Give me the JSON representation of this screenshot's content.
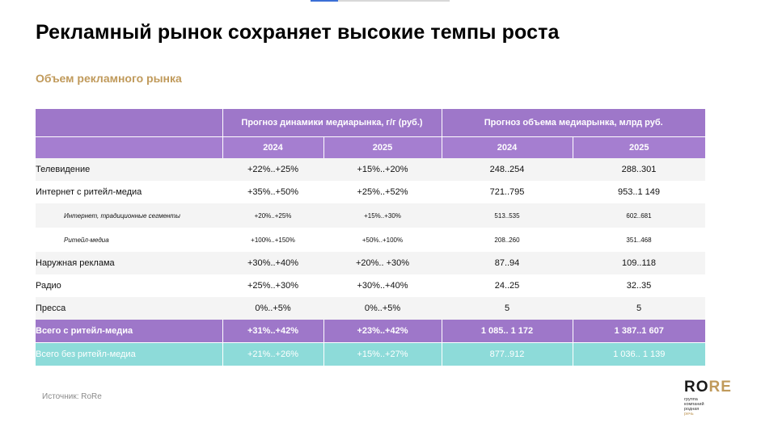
{
  "title": "Рекламный рынок сохраняет высокие темпы роста",
  "subtitle": "Объем рекламного рынка",
  "table": {
    "group_headers": [
      "Прогноз динамики медиарынка, г/г (руб.)",
      "Прогноз объема медиарынка, млрд руб."
    ],
    "year_headers": [
      "2024",
      "2025",
      "2024",
      "2025"
    ],
    "rows": [
      {
        "label": "Телевидение",
        "g2024": "+22%..+25%",
        "g2025": "+15%..+20%",
        "v2024": "248..254",
        "v2025": "288..301"
      },
      {
        "label": "Интернет с ритейл-медиа",
        "g2024": "+35%..+50%",
        "g2025": "+25%..+52%",
        "v2024": "721..795",
        "v2025": "953..1 149"
      },
      {
        "label": "Интернет, традиционные сегменты",
        "g2024": "+20%..+25%",
        "g2025": "+15%..+30%",
        "v2024": "513..535",
        "v2025": "602..681"
      },
      {
        "label": "Ритейл-медиа",
        "g2024": "+100%..+150%",
        "g2025": "+50%..+100%",
        "v2024": "208..260",
        "v2025": "351..468"
      },
      {
        "label": "Наружная реклама",
        "g2024": "+30%..+40%",
        "g2025": "+20%.. +30%",
        "v2024": "87..94",
        "v2025": "109..118"
      },
      {
        "label": "Радио",
        "g2024": "+25%..+30%",
        "g2025": "+30%..+40%",
        "v2024": "24..25",
        "v2025": "32..35"
      },
      {
        "label": "Пресса",
        "g2024": "0%..+5%",
        "g2025": "0%..+5%",
        "v2024": "5",
        "v2025": "5"
      }
    ],
    "total_with_retail": {
      "label": "Всего с ритейл-медиа",
      "g2024": "+31%..+42%",
      "g2025": "+23%..+42%",
      "v2024": "1 085.. 1 172",
      "v2025": "1 387..1 607"
    },
    "total_without_retail": {
      "label": "Всего без ритейл-медиа",
      "g2024": "+21%..+26%",
      "g2025": "+15%..+27%",
      "v2024": "877..912",
      "v2025": "1 036.. 1 139"
    }
  },
  "source": "Источник: RoRe",
  "logo": {
    "word_part1": "RO",
    "word_part2": "RE",
    "line1": "группа",
    "line2": "компаний",
    "line3": "родная",
    "line4": "речь"
  },
  "colors": {
    "header_purple": "#9e77c9",
    "total_teal": "#8ddbd9",
    "accent_gold": "#c09a5b"
  }
}
